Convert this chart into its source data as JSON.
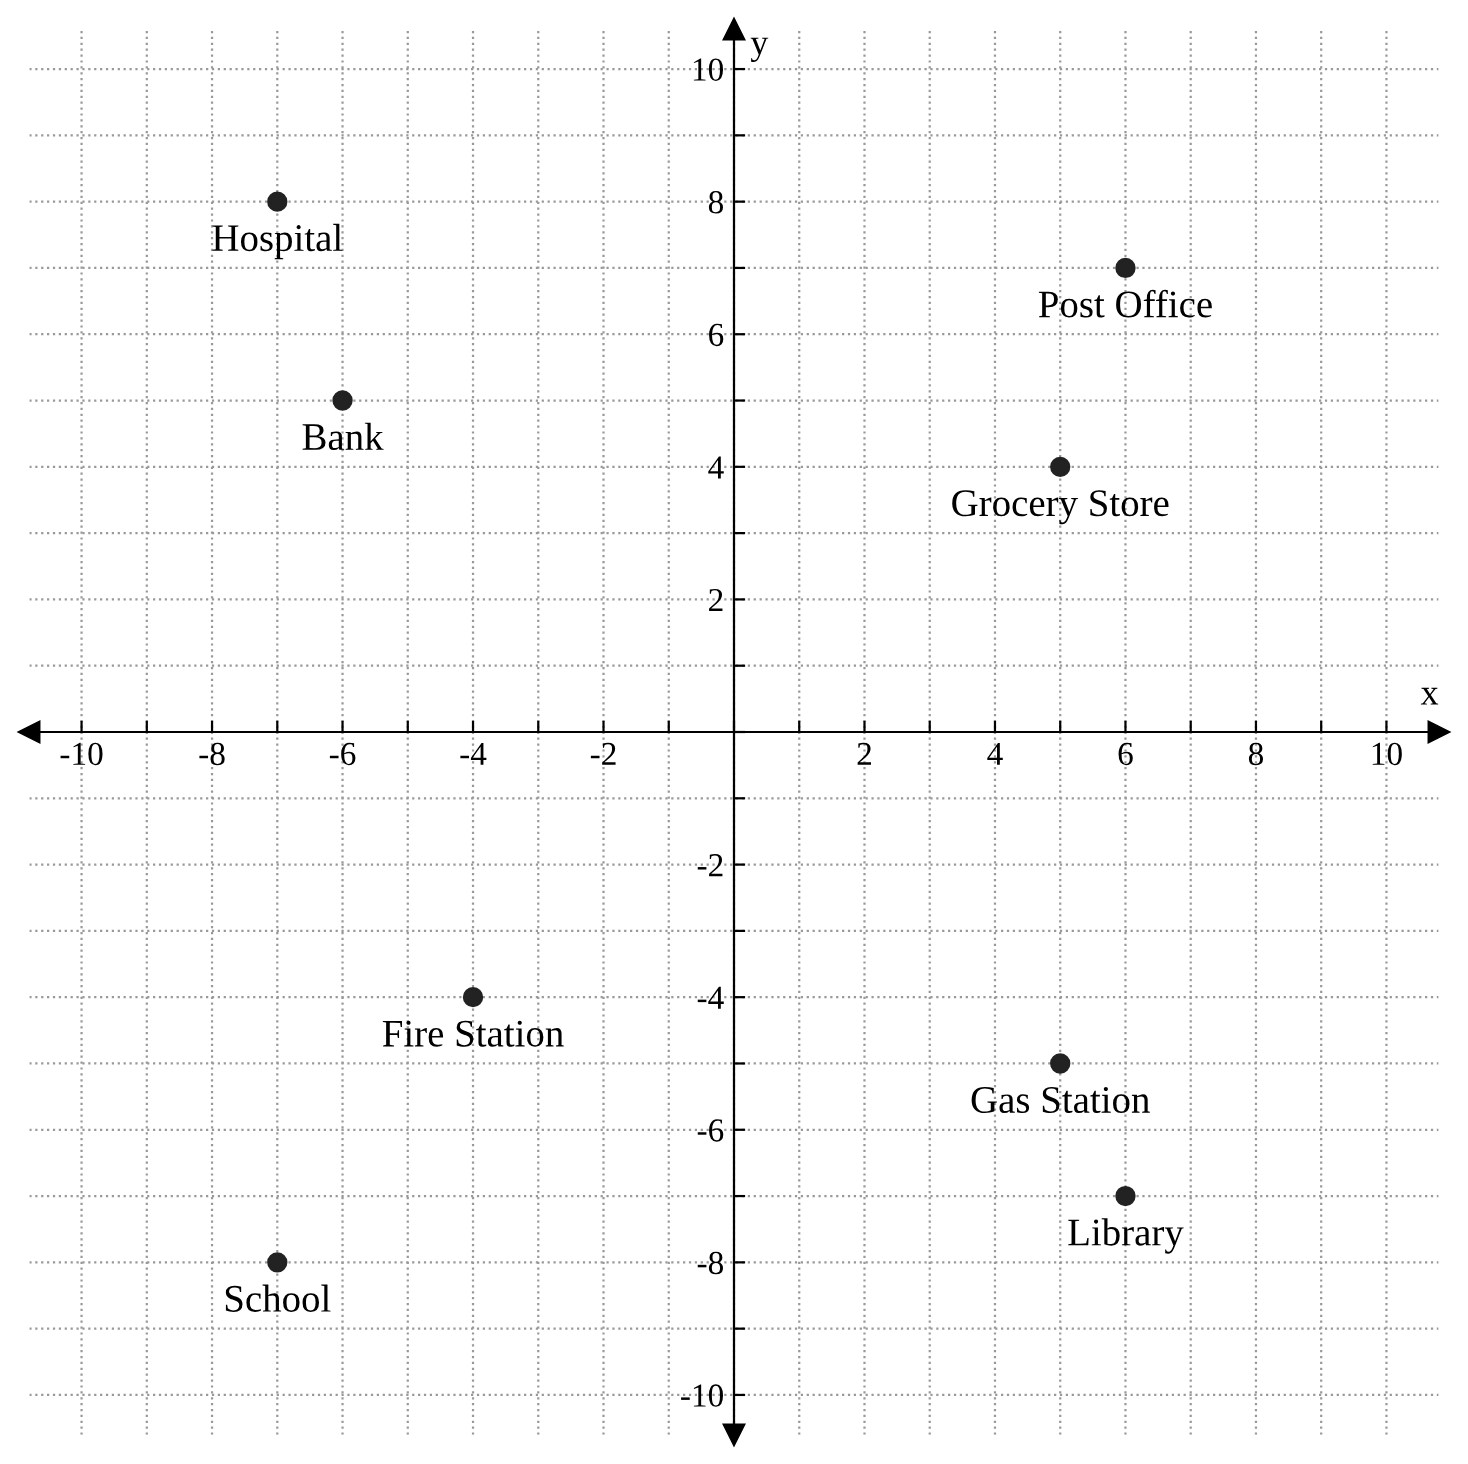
{
  "chart_data": {
    "type": "scatter",
    "xlabel": "x",
    "ylabel": "y",
    "x": [
      -7,
      -6,
      6,
      5,
      -4,
      5,
      6,
      -7
    ],
    "series": [
      {
        "color": "#222222",
        "values": [
          8,
          5,
          7,
          4,
          -4,
          -5,
          -7,
          -8
        ]
      }
    ],
    "annotations": [
      {
        "text": "Hospital",
        "x": -7,
        "y": 8
      },
      {
        "text": "Bank",
        "x": -6,
        "y": 5
      },
      {
        "text": "Post Office",
        "x": 6,
        "y": 7
      },
      {
        "text": "Grocery Store",
        "x": 5,
        "y": 4
      },
      {
        "text": "Fire Station",
        "x": -4,
        "y": -4
      },
      {
        "text": "Gas Station",
        "x": 5,
        "y": -5
      },
      {
        "text": "Library",
        "x": 6,
        "y": -7
      },
      {
        "text": "School",
        "x": -7,
        "y": -8
      }
    ],
    "xlim": [
      -10.8,
      10.8
    ],
    "ylim": [
      -10.6,
      10.6
    ],
    "xticks": [
      -10,
      {
        "value": -9,
        "label": null
      },
      -8,
      {
        "value": -7,
        "label": null
      },
      -6,
      {
        "value": -5,
        "label": null
      },
      -4,
      {
        "value": -3,
        "label": null
      },
      -2,
      {
        "value": -1,
        "label": null
      },
      {
        "value": 0,
        "label": null
      },
      {
        "value": 1,
        "label": null
      },
      2,
      {
        "value": 3,
        "label": null
      },
      4,
      {
        "value": 5,
        "label": null
      },
      6,
      {
        "value": 7,
        "label": null
      },
      8,
      {
        "value": 9,
        "label": null
      },
      10
    ],
    "yticks": [
      -10,
      {
        "value": -9,
        "label": null
      },
      -8,
      {
        "value": -7,
        "label": null
      },
      -6,
      {
        "value": -5,
        "label": null
      },
      -4,
      {
        "value": -3,
        "label": null
      },
      -2,
      {
        "value": -1,
        "label": null
      },
      {
        "value": 0,
        "label": null
      },
      {
        "value": 1,
        "label": null
      },
      2,
      {
        "value": 3,
        "label": null
      },
      4,
      {
        "value": 5,
        "label": null
      },
      6,
      {
        "value": 7,
        "label": null
      },
      8,
      {
        "value": 9,
        "label": null
      },
      10
    ],
    "grid": true,
    "marker": "circle"
  }
}
